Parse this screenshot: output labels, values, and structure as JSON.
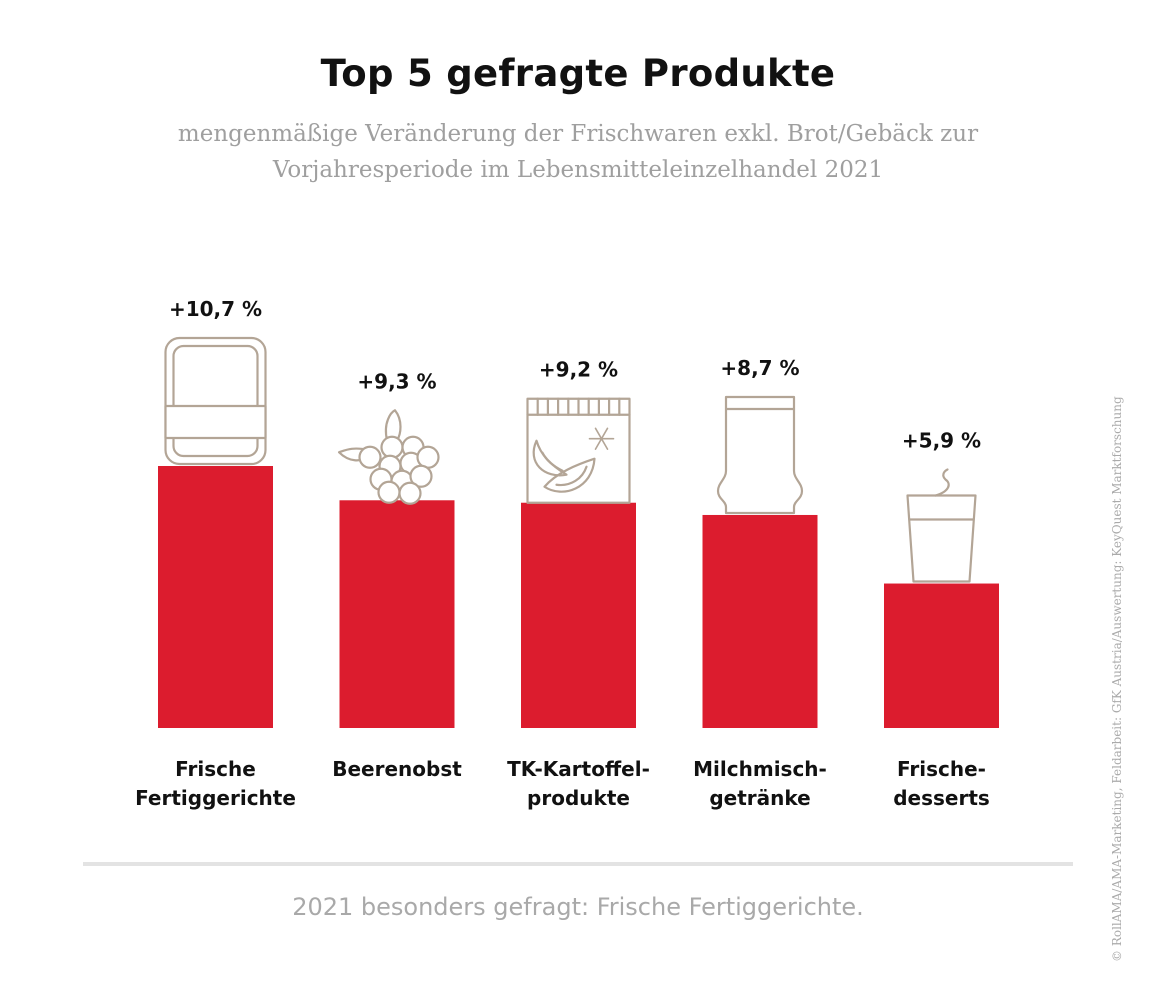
{
  "title": "Top 5 gefragte Produkte",
  "subtitle": "mengenmäßige Veränderung der Frischwaren exkl. Brot/Gebäck zur Vorjahresperiode im Lebensmitteleinzelhandel 2021",
  "footer": "2021 besonders gefragt: Frische Fertiggerichte.",
  "credit": "© RollAMA/AMA-Marketing, Feldarbeit: GfK Austria/Auswertung: KeyQuest Marktforschung",
  "colors": {
    "bar": "#dc1c2e",
    "icon": "#b3a596",
    "text": "#111111",
    "subtitle": "#9f9f9f"
  },
  "chart_data": {
    "type": "bar",
    "categories": [
      [
        "Frische",
        "Fertiggerichte"
      ],
      [
        "Beerenobst"
      ],
      [
        "TK-Kartoffel-",
        "produkte"
      ],
      [
        "Milchmisch-",
        "getränke"
      ],
      [
        "Frische-",
        "desserts"
      ]
    ],
    "values": [
      10.7,
      9.3,
      9.2,
      8.7,
      5.9
    ],
    "value_labels": [
      "+10,7 %",
      "+9,3 %",
      "+9,2 %",
      "+8,7 %",
      "+5,9 %"
    ],
    "icons": [
      "ready-meal-tray-icon",
      "berries-icon",
      "frozen-fries-box-icon",
      "milk-drink-bottle-icon",
      "dessert-cup-icon"
    ],
    "ylim": [
      0,
      10.7
    ]
  }
}
